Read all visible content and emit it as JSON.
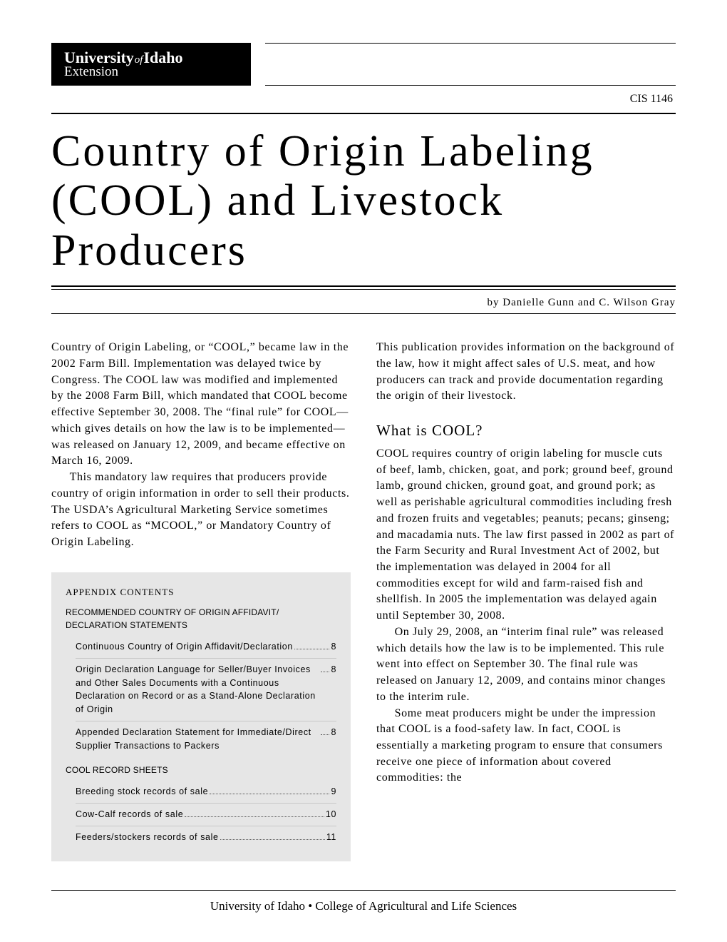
{
  "header": {
    "logo_university": "University",
    "logo_of": "of",
    "logo_idaho": "Idaho",
    "logo_extension": "Extension",
    "cis": "CIS 1146"
  },
  "title": "Country of Origin Labeling (COOL) and Livestock Producers",
  "byline": "by Danielle Gunn and C. Wilson Gray",
  "left_col": {
    "p1": "Country of Origin Labeling, or “COOL,” became law in the 2002 Farm Bill. Implementation was delayed twice by Congress. The COOL law was modified and implemented by the 2008 Farm Bill, which mandated that COOL become effective September 30, 2008. The “final rule” for COOL—which gives details on how the law is to be implemented—was released on January 12, 2009, and became effective on March 16, 2009.",
    "p2": "This mandatory law requires that producers provide country of origin information in order to sell their products. The USDA’s Agricultural Marketing Service sometimes refers to COOL as “MCOOL,” or Mandatory Country of Origin Labeling."
  },
  "appendix": {
    "title": "APPENDIX CONTENTS",
    "section1": "RECOMMENDED COUNTRY OF ORIGIN AFFIDAVIT/ DECLARATION STATEMENTS",
    "items1": [
      {
        "text": "Continuous Country of Origin Affidavit/Declaration",
        "page": "8"
      },
      {
        "text": "Origin Declaration Language for Seller/Buyer Invoices and Other Sales Documents with a Continuous Declaration on Record or as a Stand-Alone Declaration of Origin",
        "page": "8"
      },
      {
        "text": "Appended Declaration Statement for Immediate/Direct Supplier Transactions to Packers",
        "page": "8"
      }
    ],
    "section2": "COOL RECORD SHEETS",
    "items2": [
      {
        "text": "Breeding stock records of sale",
        "page": "9"
      },
      {
        "text": "Cow-Calf records of sale",
        "page": "10"
      },
      {
        "text": "Feeders/stockers records of sale",
        "page": "11"
      }
    ]
  },
  "right_col": {
    "p1": "This publication provides information on the background of the law, how it might affect sales of U.S. meat, and how producers can track and provide documentation regarding the origin of their livestock.",
    "h1": "What is COOL?",
    "p2": "COOL requires country of origin labeling for muscle cuts of beef, lamb, chicken, goat, and pork; ground beef, ground lamb, ground chicken, ground goat, and ground pork; as well as perishable agricultural commodities including fresh and frozen fruits and vegetables; peanuts; pecans; ginseng; and macadamia nuts. The law first passed in 2002 as part of the Farm Security and Rural Investment Act of 2002, but the implementation was delayed in 2004 for all commodities except for wild and farm-raised fish and shellfish. In 2005 the implementation was delayed again until September 30, 2008.",
    "p3": "On July 29, 2008, an “interim final rule” was released which details how the law is to be implemented. This rule went into effect on September 30. The final rule was released on January 12, 2009, and contains minor changes to the interim rule.",
    "p4": "Some meat producers might be under the impression that COOL is a food-safety law. In fact, COOL is essentially a marketing program to ensure that consumers receive one piece of information about covered commodities: the"
  },
  "footer": "University of Idaho • College of Agricultural and Life Sciences"
}
